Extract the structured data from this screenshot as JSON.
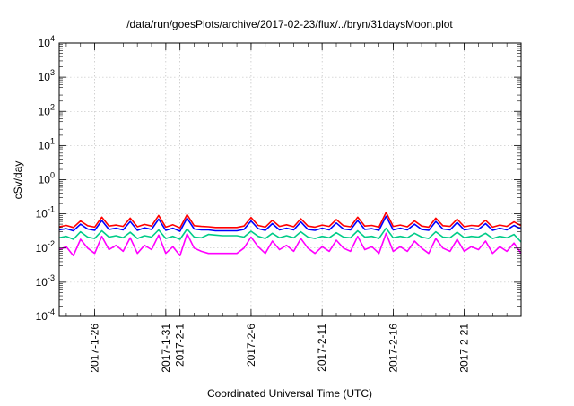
{
  "chart_data": {
    "type": "line",
    "title": "/data/run/goesPlots/archive/2017-02-23/flux/../bryn/31daysMoon.plot",
    "xlabel": "Coordinated Universal Time (UTC)",
    "ylabel": "cSv/day",
    "yscale": "log",
    "ylim": [
      0.0001,
      10000
    ],
    "xlim": [
      "2017-01-23T12:00",
      "2017-02-25T00:00"
    ],
    "grid": true,
    "legend": "none",
    "x_ticks": [
      {
        "date": "2017-01-26",
        "label": "2017-1-26"
      },
      {
        "date": "2017-01-31",
        "label": "2017-1-31"
      },
      {
        "date": "2017-02-01",
        "label": "2017-2-1"
      },
      {
        "date": "2017-02-06",
        "label": "2017-2-6"
      },
      {
        "date": "2017-02-11",
        "label": "2017-2-11"
      },
      {
        "date": "2017-02-16",
        "label": "2017-2-16"
      },
      {
        "date": "2017-02-21",
        "label": "2017-2-21"
      }
    ],
    "y_ticks": [
      {
        "value": 0.0001,
        "base": "10",
        "exp": "-4"
      },
      {
        "value": 0.001,
        "base": "10",
        "exp": "-3"
      },
      {
        "value": 0.01,
        "base": "10",
        "exp": "-2"
      },
      {
        "value": 0.1,
        "base": "10",
        "exp": "-1"
      },
      {
        "value": 1,
        "base": "10",
        "exp": "0"
      },
      {
        "value": 10,
        "base": "10",
        "exp": "1"
      },
      {
        "value": 100,
        "base": "10",
        "exp": "2"
      },
      {
        "value": 1000,
        "base": "10",
        "exp": "3"
      },
      {
        "value": 10000,
        "base": "10",
        "exp": "4"
      }
    ],
    "x": [
      "2017-01-23T12:00",
      "2017-01-24T00:00",
      "2017-01-24T12:00",
      "2017-01-25T00:00",
      "2017-01-25T12:00",
      "2017-01-26T00:00",
      "2017-01-26T12:00",
      "2017-01-27T00:00",
      "2017-01-27T12:00",
      "2017-01-28T00:00",
      "2017-01-28T12:00",
      "2017-01-29T00:00",
      "2017-01-29T12:00",
      "2017-01-30T00:00",
      "2017-01-30T12:00",
      "2017-01-31T00:00",
      "2017-01-31T12:00",
      "2017-02-01T00:00",
      "2017-02-01T12:00",
      "2017-02-02T00:00",
      "2017-02-02T12:00",
      "2017-02-03T00:00",
      "2017-02-03T12:00",
      "2017-02-04T00:00",
      "2017-02-04T12:00",
      "2017-02-05T00:00",
      "2017-02-05T12:00",
      "2017-02-06T00:00",
      "2017-02-06T12:00",
      "2017-02-07T00:00",
      "2017-02-07T12:00",
      "2017-02-08T00:00",
      "2017-02-08T12:00",
      "2017-02-09T00:00",
      "2017-02-09T12:00",
      "2017-02-10T00:00",
      "2017-02-10T12:00",
      "2017-02-11T00:00",
      "2017-02-11T12:00",
      "2017-02-12T00:00",
      "2017-02-12T12:00",
      "2017-02-13T00:00",
      "2017-02-13T12:00",
      "2017-02-14T00:00",
      "2017-02-14T12:00",
      "2017-02-15T00:00",
      "2017-02-15T12:00",
      "2017-02-16T00:00",
      "2017-02-16T12:00",
      "2017-02-17T00:00",
      "2017-02-17T12:00",
      "2017-02-18T00:00",
      "2017-02-18T12:00",
      "2017-02-19T00:00",
      "2017-02-19T12:00",
      "2017-02-20T00:00",
      "2017-02-20T12:00",
      "2017-02-21T00:00",
      "2017-02-21T12:00",
      "2017-02-22T00:00",
      "2017-02-22T12:00",
      "2017-02-23T00:00",
      "2017-02-23T12:00",
      "2017-02-24T00:00",
      "2017-02-24T12:00",
      "2017-02-25T00:00"
    ],
    "series": [
      {
        "color": "#ff0000",
        "values": [
          0.042,
          0.046,
          0.04,
          0.062,
          0.045,
          0.041,
          0.08,
          0.044,
          0.047,
          0.043,
          0.075,
          0.042,
          0.049,
          0.044,
          0.09,
          0.041,
          0.048,
          0.039,
          0.095,
          0.045,
          0.043,
          0.042,
          0.04,
          0.04,
          0.04,
          0.04,
          0.044,
          0.078,
          0.046,
          0.041,
          0.065,
          0.043,
          0.048,
          0.042,
          0.072,
          0.044,
          0.041,
          0.047,
          0.043,
          0.068,
          0.045,
          0.042,
          0.08,
          0.044,
          0.046,
          0.041,
          0.11,
          0.043,
          0.047,
          0.042,
          0.062,
          0.044,
          0.041,
          0.075,
          0.045,
          0.043,
          0.07,
          0.042,
          0.046,
          0.044,
          0.065,
          0.041,
          0.047,
          0.043,
          0.058,
          0.045
        ]
      },
      {
        "color": "#0000ff",
        "values": [
          0.034,
          0.037,
          0.032,
          0.05,
          0.036,
          0.033,
          0.064,
          0.035,
          0.038,
          0.034,
          0.06,
          0.033,
          0.039,
          0.035,
          0.07,
          0.033,
          0.038,
          0.031,
          0.075,
          0.036,
          0.034,
          0.034,
          0.032,
          0.032,
          0.032,
          0.032,
          0.035,
          0.062,
          0.037,
          0.033,
          0.052,
          0.034,
          0.038,
          0.034,
          0.058,
          0.035,
          0.033,
          0.038,
          0.034,
          0.054,
          0.036,
          0.034,
          0.064,
          0.035,
          0.037,
          0.033,
          0.085,
          0.034,
          0.038,
          0.034,
          0.05,
          0.035,
          0.033,
          0.06,
          0.036,
          0.034,
          0.056,
          0.034,
          0.037,
          0.035,
          0.052,
          0.033,
          0.038,
          0.034,
          0.046,
          0.036
        ]
      },
      {
        "color": "#00cc88",
        "values": [
          0.02,
          0.022,
          0.018,
          0.03,
          0.021,
          0.019,
          0.032,
          0.021,
          0.023,
          0.02,
          0.029,
          0.019,
          0.023,
          0.021,
          0.034,
          0.019,
          0.022,
          0.018,
          0.036,
          0.021,
          0.02,
          0.025,
          0.024,
          0.023,
          0.023,
          0.023,
          0.021,
          0.031,
          0.022,
          0.019,
          0.027,
          0.02,
          0.023,
          0.02,
          0.03,
          0.021,
          0.019,
          0.022,
          0.02,
          0.028,
          0.021,
          0.02,
          0.032,
          0.021,
          0.022,
          0.019,
          0.038,
          0.02,
          0.022,
          0.02,
          0.027,
          0.021,
          0.019,
          0.03,
          0.021,
          0.02,
          0.029,
          0.02,
          0.022,
          0.021,
          0.027,
          0.019,
          0.022,
          0.02,
          0.025,
          0.015
        ]
      },
      {
        "color": "#ff00ff",
        "values": [
          0.009,
          0.011,
          0.006,
          0.018,
          0.01,
          0.007,
          0.022,
          0.009,
          0.012,
          0.008,
          0.02,
          0.007,
          0.012,
          0.009,
          0.024,
          0.007,
          0.011,
          0.006,
          0.026,
          0.01,
          0.008,
          0.007,
          0.007,
          0.007,
          0.007,
          0.007,
          0.01,
          0.021,
          0.011,
          0.007,
          0.016,
          0.009,
          0.012,
          0.008,
          0.019,
          0.01,
          0.007,
          0.011,
          0.008,
          0.017,
          0.01,
          0.008,
          0.022,
          0.009,
          0.011,
          0.007,
          0.027,
          0.008,
          0.011,
          0.008,
          0.016,
          0.01,
          0.007,
          0.019,
          0.01,
          0.008,
          0.018,
          0.008,
          0.011,
          0.009,
          0.016,
          0.007,
          0.011,
          0.008,
          0.014,
          0.007
        ]
      }
    ]
  }
}
